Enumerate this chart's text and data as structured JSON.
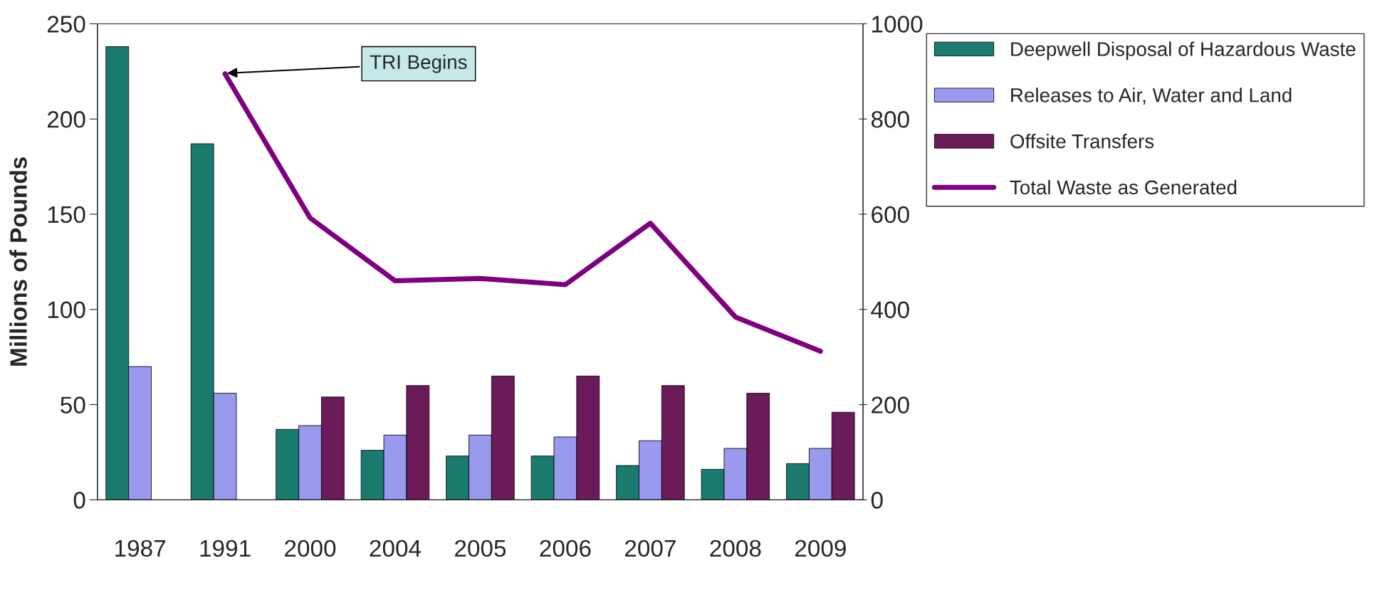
{
  "chart_data": {
    "type": "bar",
    "ylabel": "Millions of Pounds",
    "categories": [
      "1987",
      "1991",
      "2000",
      "2004",
      "2005",
      "2006",
      "2007",
      "2008",
      "2009"
    ],
    "series": [
      {
        "name": "Deepwell Disposal of Hazardous Waste",
        "color": "#1a7a6e",
        "values": [
          238,
          187,
          37,
          26,
          23,
          23,
          18,
          16,
          19
        ]
      },
      {
        "name": "Releases to Air, Water and Land",
        "color": "#9999ee",
        "values": [
          70,
          56,
          39,
          34,
          34,
          33,
          31,
          27,
          27
        ]
      },
      {
        "name": "Offsite Transfers",
        "color": "#6b1a5a",
        "values": [
          null,
          null,
          54,
          60,
          65,
          65,
          60,
          56,
          46
        ]
      },
      {
        "name": "Total Waste as Generated",
        "color": "#800080",
        "type": "line",
        "axis": "y2",
        "values": [
          null,
          895,
          592,
          460,
          465,
          452,
          581,
          384,
          312
        ]
      }
    ],
    "ylim": [
      0,
      250
    ],
    "yticks": [
      0,
      50,
      100,
      150,
      200,
      250
    ],
    "y2lim": [
      0,
      1000
    ],
    "y2ticks": [
      0,
      200,
      400,
      600,
      800,
      1000
    ],
    "annotations": [
      {
        "text": "TRI Begins",
        "x": "1991",
        "y": 224
      }
    ],
    "legend": "right",
    "grid": false
  }
}
